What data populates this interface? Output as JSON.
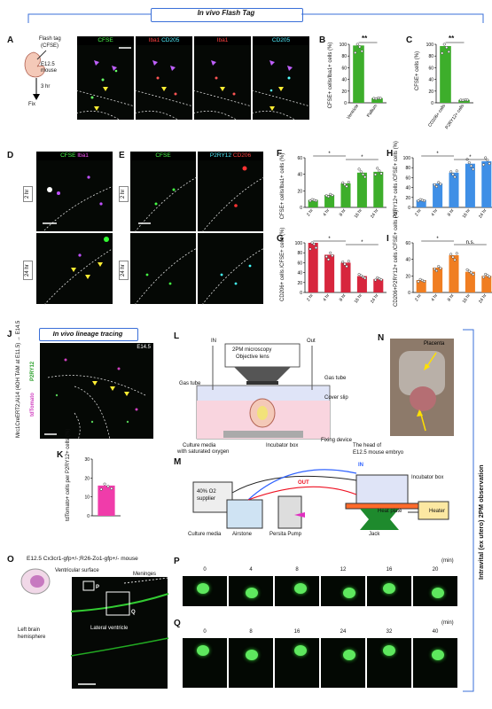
{
  "header": {
    "title": "In vivo Flash Tag"
  },
  "panelA": {
    "letter": "A",
    "flash_tag": "Flash tag",
    "flash_tag2": "(CFSE)",
    "mouse": "E12.5",
    "mouse2": "mouse",
    "time": "3 hr",
    "fix": "Fix",
    "ch1": "CFSE",
    "ch2a": "Iba1",
    "ch2b": "CD205",
    "ch3": "Iba1",
    "ch4": "CD205"
  },
  "panelB": {
    "letter": "B",
    "ylabel": "CFSE+ cells/Iba1+ cells (%)",
    "sig": "**",
    "cats": [
      "Ventricle",
      "Pallium"
    ]
  },
  "panelC": {
    "letter": "C",
    "ylabel": "CFSE+ cells (%)",
    "sig": "**",
    "cats": [
      "CD206+ cells",
      "P2RY12+ cells"
    ]
  },
  "panelD": {
    "letter": "D",
    "ch1": "CFSE",
    "ch2": "Iba1",
    "t1": "2 hr",
    "t2": "24 hr"
  },
  "panelE": {
    "letter": "E",
    "ch1": "CFSE",
    "ch2": "P2RY12",
    "ch3": "CD206",
    "t1": "2 hr",
    "t2": "24 hr"
  },
  "panelF": {
    "letter": "F",
    "ylabel": "CFSE+ cells/Iba1+ cells (%)",
    "sig": [
      "*",
      "*"
    ]
  },
  "panelG": {
    "letter": "G",
    "ylabel": "CD206+ cells /CFSE+ cells (%)",
    "sig": [
      "*",
      "*"
    ]
  },
  "panelH": {
    "letter": "H",
    "ylabel": "P2RY12+ cells /CFSE+ cells (%)",
    "sig": [
      "*",
      "*"
    ]
  },
  "panelI": {
    "letter": "I",
    "ylabel": "CD206+P2RY12+ cells /CFSE+ cells (%)",
    "sig": [
      "*",
      "n.s."
    ]
  },
  "panelJ": {
    "letter": "J",
    "section": "In vivo lineage tracing",
    "age": "E14.5",
    "ch1": "P2RY12",
    "ch2": "tdTomato",
    "side": "Mrc1CreERT2;Ai14 (4OH TAM at E11.5) → E14.5"
  },
  "panelK": {
    "letter": "K",
    "ylabel": "tdTomato+ cells per P2RY12+ cells (%)",
    "value": 16
  },
  "panelL": {
    "letter": "L",
    "in": "IN",
    "out": "Out",
    "scope": "2PM microscopy",
    "obj": "Objective lens",
    "gas1": "Gas tube",
    "gas2": "Gas tube",
    "cover": "Cover slip",
    "media": "Culture media",
    "media2": "with saturated oxygen",
    "incub": "Incubator box",
    "fix": "Fixing device"
  },
  "panelM": {
    "letter": "M",
    "in": "IN",
    "out": "OUT",
    "o2": "40% O2",
    "o2b": "supplier",
    "media": "Culture media",
    "airstone": "Airstone",
    "pump": "Persita Pump",
    "incub": "Incubator box",
    "heatplate": "Heat plate",
    "heater": "Heater",
    "jack": "Jack"
  },
  "panelN": {
    "letter": "N",
    "placenta": "Placenta",
    "head": "The head of",
    "head2": "E12.5 mouse embryo"
  },
  "side": {
    "label": "Intravital (ex utero) 2PM observation"
  },
  "panelO": {
    "letter": "O",
    "title": "E12.5 Cx3cr1-gfp+/-;R26-Zo1-gfp+/- mouse",
    "vs": "Ventricular surface",
    "men": "Meninges",
    "lv": "Lateral ventricle",
    "left": "Left brain",
    "left2": "hemisphere",
    "p": "P",
    "q": "Q"
  },
  "panelP": {
    "letter": "P",
    "times": [
      "0",
      "4",
      "8",
      "12",
      "16",
      "20"
    ],
    "unit": "(min)"
  },
  "panelQ": {
    "letter": "Q",
    "times": [
      "0",
      "8",
      "16",
      "24",
      "32",
      "40"
    ],
    "unit": "(min)"
  },
  "chart_data": [
    {
      "type": "bar",
      "id": "B",
      "categories": [
        "Ventricle",
        "Pallium"
      ],
      "values": [
        98,
        8
      ],
      "ylim": [
        0,
        100
      ],
      "colors": [
        "#3dae2b",
        "#3dae2b"
      ]
    },
    {
      "type": "bar",
      "id": "C",
      "categories": [
        "CD206+ cells",
        "P2RY12+ cells"
      ],
      "values": [
        97,
        5
      ],
      "ylim": [
        0,
        100
      ],
      "colors": [
        "#3dae2b",
        "#3dae2b"
      ]
    },
    {
      "type": "bar",
      "id": "F",
      "categories": [
        "2 hr",
        "4 hr",
        "8 hr",
        "16 hr",
        "24 hr"
      ],
      "values": [
        9,
        15,
        29,
        42,
        43
      ],
      "ylim": [
        0,
        60
      ]
    },
    {
      "type": "bar",
      "id": "G",
      "categories": [
        "2 hr",
        "4 hr",
        "8 hr",
        "16 hr",
        "24 hr"
      ],
      "values": [
        100,
        76,
        60,
        33,
        27
      ],
      "ylim": [
        0,
        100
      ]
    },
    {
      "type": "bar",
      "id": "H",
      "categories": [
        "2 hr",
        "4 hr",
        "8 hr",
        "16 hr",
        "24 hr"
      ],
      "values": [
        15,
        48,
        70,
        88,
        93
      ],
      "ylim": [
        0,
        100
      ]
    },
    {
      "type": "bar",
      "id": "I",
      "categories": [
        "2 hr",
        "4 hr",
        "8 hr",
        "16 hr",
        "24 hr"
      ],
      "values": [
        15,
        30,
        45,
        25,
        20
      ],
      "ylim": [
        0,
        60
      ]
    },
    {
      "type": "bar",
      "id": "K",
      "categories": [
        ""
      ],
      "values": [
        16
      ],
      "ylim": [
        0,
        30
      ]
    }
  ]
}
